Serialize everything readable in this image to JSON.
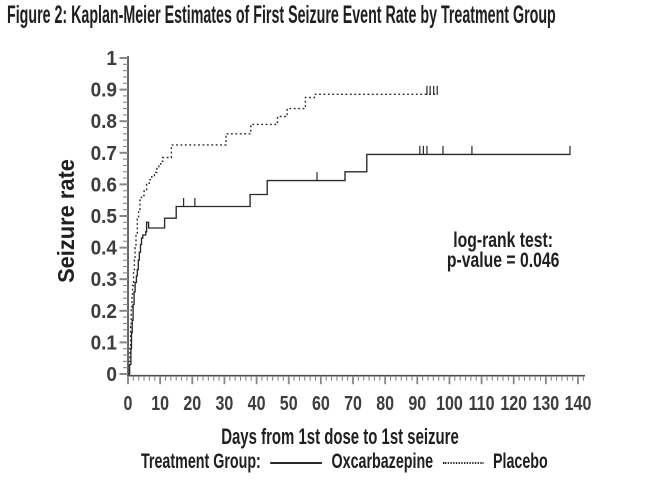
{
  "figure": {
    "title": "Figure 2: Kaplan-Meier Estimates of First Seizure Event Rate by Treatment Group"
  },
  "chart_data": {
    "type": "line",
    "subtype": "kaplan_meier_step",
    "title": "Figure 2: Kaplan-Meier Estimates of First Seizure Event Rate by Treatment Group",
    "xlabel": "Days from 1st dose to 1st seizure",
    "ylabel": "Seizure rate",
    "xlim": [
      0,
      142
    ],
    "ylim": [
      0,
      1
    ],
    "grid": false,
    "legend_position": "bottom",
    "x_ticks": {
      "values": [
        0,
        10,
        20,
        30,
        40,
        50,
        60,
        70,
        80,
        90,
        100,
        110,
        120,
        130,
        140
      ],
      "labels": [
        "0",
        "10",
        "20",
        "30",
        "40",
        "50",
        "60",
        "70",
        "80",
        "90",
        "100",
        "110",
        "120",
        "130",
        "140"
      ]
    },
    "y_ticks": {
      "values": [
        0,
        0.1,
        0.2,
        0.3,
        0.4,
        0.5,
        0.6,
        0.7,
        0.8,
        0.9,
        1
      ],
      "labels": [
        "0",
        "0.1",
        "0.2",
        "0.3",
        "0.4",
        "0.5",
        "0.6",
        "0.7",
        "0.8",
        "0.9",
        "1"
      ]
    },
    "x_minor_step": 1.6667,
    "y_minor_step": 0.02,
    "annotation": {
      "lines": [
        "log-rank test:",
        "p-value = 0.046"
      ],
      "x_day": 116.7,
      "y_value": 0.402
    },
    "test": "log-rank test",
    "p_value": "0.046",
    "legend": {
      "label": "Treatment Group:",
      "entries": [
        {
          "name": "Oxcarbazepine",
          "style": "solid"
        },
        {
          "name": "Placebo",
          "style": "dotted"
        }
      ]
    },
    "series": [
      {
        "name": "Oxcarbazepine",
        "style": "solid",
        "end_day": 137.7,
        "points": [
          [
            0,
            0
          ],
          [
            0.5,
            0.03
          ],
          [
            0.9,
            0.08
          ],
          [
            1.1,
            0.13
          ],
          [
            1.3,
            0.17
          ],
          [
            1.6,
            0.22
          ],
          [
            1.9,
            0.26
          ],
          [
            2.2,
            0.29
          ],
          [
            2.6,
            0.31
          ],
          [
            2.9,
            0.33
          ],
          [
            3.2,
            0.36
          ],
          [
            3.5,
            0.385
          ],
          [
            3.9,
            0.41
          ],
          [
            4.2,
            0.43
          ],
          [
            4.6,
            0.44
          ],
          [
            5.5,
            0.45
          ],
          [
            5.8,
            0.48
          ],
          [
            6.4,
            0.462
          ],
          [
            11.4,
            0.493
          ],
          [
            15,
            0.53
          ],
          [
            38,
            0.568
          ],
          [
            43.3,
            0.612
          ],
          [
            67.5,
            0.64
          ],
          [
            74.3,
            0.695
          ]
        ],
        "censors": [
          [
            17.3,
            0.53
          ],
          [
            20.8,
            0.53
          ],
          [
            58.8,
            0.612
          ],
          [
            90.8,
            0.695
          ],
          [
            91.9,
            0.695
          ],
          [
            93,
            0.695
          ],
          [
            98,
            0.695
          ],
          [
            107,
            0.695
          ],
          [
            137.5,
            0.695
          ]
        ]
      },
      {
        "name": "Placebo",
        "style": "dotted",
        "end_day": 96.4,
        "points": [
          [
            0,
            0
          ],
          [
            0.4,
            0.04
          ],
          [
            0.6,
            0.09
          ],
          [
            0.8,
            0.15
          ],
          [
            1.0,
            0.21
          ],
          [
            1.2,
            0.25
          ],
          [
            1.4,
            0.28
          ],
          [
            1.7,
            0.33
          ],
          [
            2.0,
            0.36
          ],
          [
            2.2,
            0.4
          ],
          [
            2.5,
            0.44
          ],
          [
            2.9,
            0.49
          ],
          [
            3.3,
            0.52
          ],
          [
            3.7,
            0.55
          ],
          [
            4.2,
            0.565
          ],
          [
            5.0,
            0.583
          ],
          [
            5.8,
            0.6
          ],
          [
            6.6,
            0.615
          ],
          [
            7.4,
            0.628
          ],
          [
            8.2,
            0.638
          ],
          [
            9.0,
            0.65
          ],
          [
            9.6,
            0.66
          ],
          [
            10.2,
            0.673
          ],
          [
            10.8,
            0.685
          ],
          [
            13.5,
            0.725
          ],
          [
            30.5,
            0.76
          ],
          [
            38.2,
            0.79
          ],
          [
            46.5,
            0.815
          ],
          [
            49.5,
            0.84
          ],
          [
            55.2,
            0.875
          ],
          [
            58,
            0.885
          ]
        ],
        "censors": [
          [
            93,
            0.885
          ],
          [
            94,
            0.885
          ],
          [
            95.1,
            0.885
          ],
          [
            96.2,
            0.885
          ]
        ]
      }
    ]
  }
}
